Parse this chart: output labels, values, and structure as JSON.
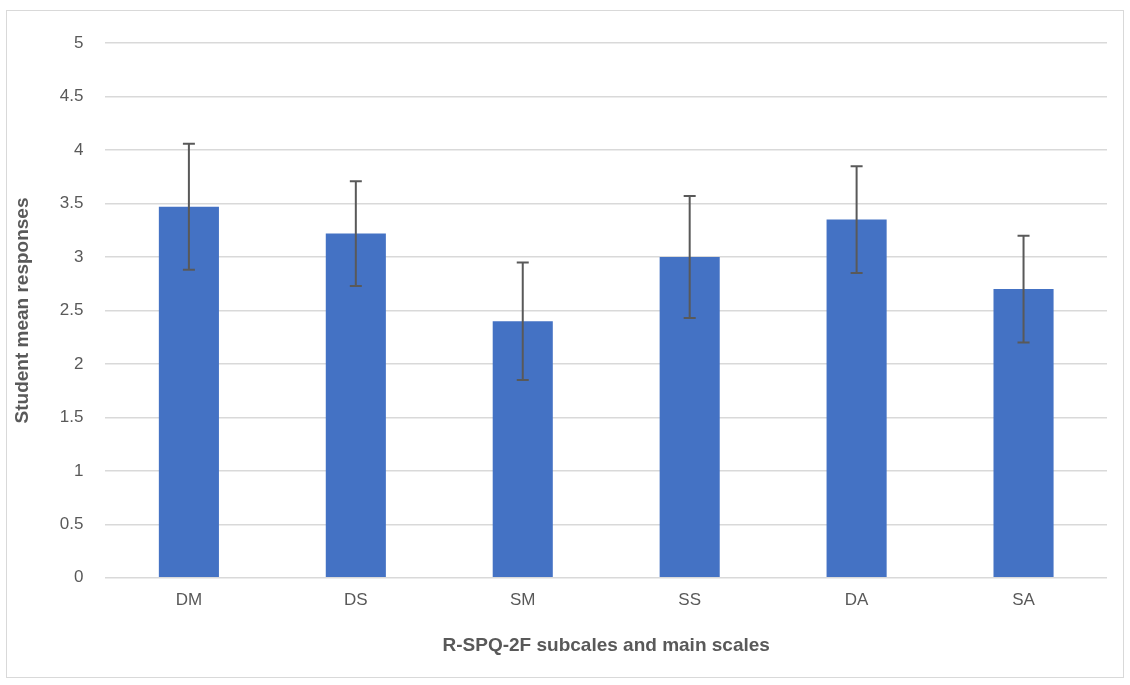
{
  "chart_data": {
    "type": "bar",
    "xlabel": "R-SPQ-2F subcales and main scales",
    "ylabel": "Student mean responses",
    "categories": [
      "DM",
      "DS",
      "SM",
      "SS",
      "DA",
      "SA"
    ],
    "values": [
      3.47,
      3.22,
      2.4,
      3.0,
      3.35,
      2.7
    ],
    "errors": [
      0.59,
      0.49,
      0.55,
      0.57,
      0.5,
      0.5
    ],
    "color": "#4472c4",
    "ylim": [
      0,
      5
    ],
    "yticks": [
      0,
      0.5,
      1,
      1.5,
      2,
      2.5,
      3,
      3.5,
      4,
      4.5,
      5
    ],
    "grid": "y"
  }
}
